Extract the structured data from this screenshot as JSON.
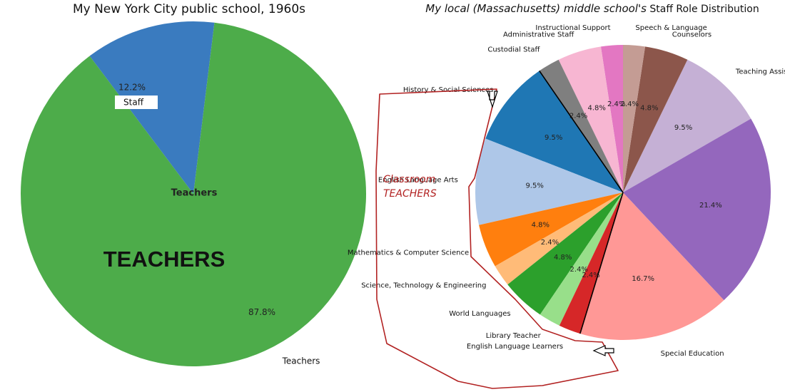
{
  "chart_data": [
    {
      "type": "pie",
      "title": "My New York City public school, 1960s",
      "slices": [
        {
          "label": "Staff",
          "value": 12.2,
          "pct_label": "12.2%",
          "color": "#3a7bbf"
        },
        {
          "label": "Teachers",
          "value": 87.8,
          "pct_label": "87.8%",
          "color": "#4dac4a"
        }
      ],
      "annotations": {
        "inner_label": "Teachers",
        "big_label": "TEACHERS"
      }
    },
    {
      "type": "pie",
      "title_italic": "My local (Massachusetts) middle school's",
      "title_rest": "Staff Role Distribution",
      "slices": [
        {
          "label": "Teaching Assistants",
          "value": 9.5,
          "pct_label": "9.5%",
          "color": "#c5b0d5"
        },
        {
          "label": "Counselors",
          "value": 4.8,
          "pct_label": "4.8%",
          "color": "#8c564b"
        },
        {
          "label": "Speech & Language",
          "value": 2.4,
          "pct_label": "2.4%",
          "color": "#c49c94"
        },
        {
          "label": "Instructional Support",
          "value": 2.4,
          "pct_label": "2.4%",
          "color": "#e377c2"
        },
        {
          "label": "Administrative Staff",
          "value": 4.8,
          "pct_label": "4.8%",
          "color": "#f7b6d2"
        },
        {
          "label": "Custodial Staff",
          "value": 2.4,
          "pct_label": "2.4%",
          "color": "#7f7f7f"
        },
        {
          "label": "History & Social Sciences",
          "value": 9.5,
          "pct_label": "9.5%",
          "color": "#1f77b4"
        },
        {
          "label": "English Language Arts",
          "value": 9.5,
          "pct_label": "9.5%",
          "color": "#aec7e8"
        },
        {
          "label": "Mathematics & Computer Science",
          "value": 4.8,
          "pct_label": "4.8%",
          "color": "#ff7f0e"
        },
        {
          "label": "Science, Technology & Engineering",
          "value": 2.4,
          "pct_label": "2.4%",
          "color": "#ffbb78"
        },
        {
          "label": "World Languages",
          "value": 4.8,
          "pct_label": "4.8%",
          "color": "#2ca02c"
        },
        {
          "label": "Library Teacher",
          "value": 2.4,
          "pct_label": "2.4%",
          "color": "#98df8a"
        },
        {
          "label": "English Language Learners",
          "value": 2.4,
          "pct_label": "2.4%",
          "color": "#d62728"
        },
        {
          "label": "Special Education",
          "value": 16.7,
          "pct_label": "16.7%",
          "color": "#ff9896"
        },
        {
          "label": "Special Education",
          "value": 21.4,
          "pct_label": "21.4%",
          "color": "#9467bd"
        }
      ],
      "visible_labels": {
        "Teaching Assistants": "Teaching Assistants",
        "Counselors": "Counselors",
        "Speech & Language": "Speech & Language",
        "Instructional Support": "Instructional Support",
        "Administrative Staff": "Administrative Staff",
        "Custodial Staff": "Custodial Staff",
        "History & Social Sciences": "History & Social Sciences",
        "English Language Arts": "English Language Arts",
        "Mathematics & Computer Science": "Mathematics & Computer Science",
        "Science, Technology & Engineering": "Science, Technology & Engineering",
        "World Languages": "World Languages",
        "Library Teacher": "Library Teacher",
        "English Language Learners": "English Language Learners",
        "Special Education": "Special Education"
      },
      "annotations": {
        "highlight_text_line1": "Classroom",
        "highlight_text_line2": "TEACHERS",
        "highlight_color": "#b22222"
      }
    }
  ]
}
